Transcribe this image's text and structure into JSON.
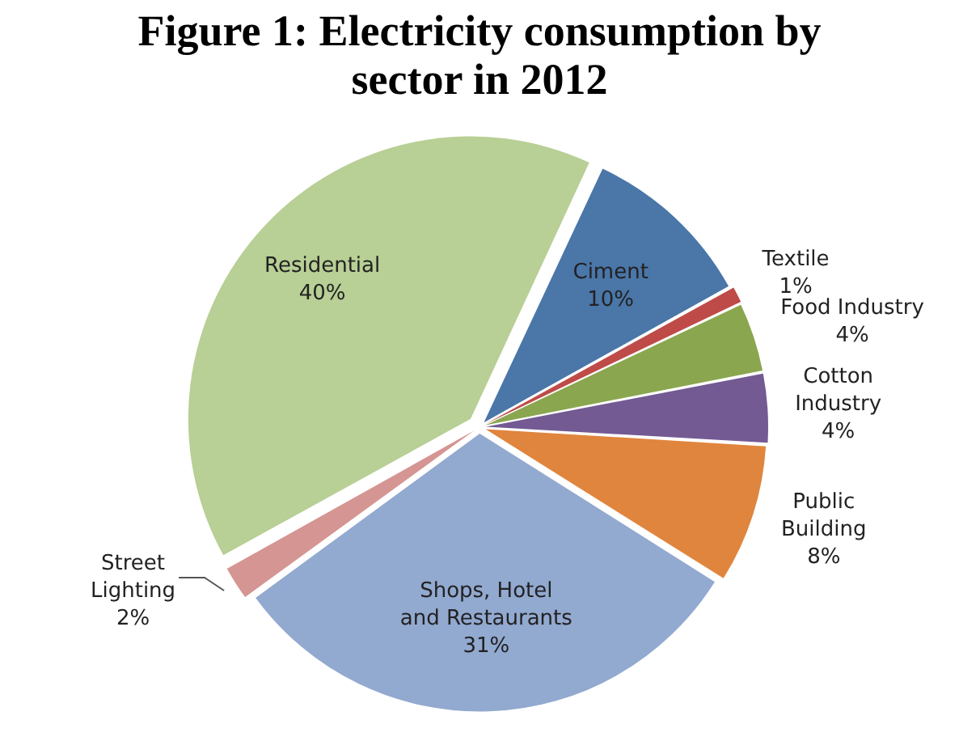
{
  "chart_data": {
    "type": "pie",
    "title": "Figure 1: Electricity consumption by sector in 2012",
    "categories": [
      "Ciment",
      "Textile",
      "Food Industry",
      "Cotton Industry",
      "Public Building",
      "Shops, Hotel and Restaurants",
      "Street Lighting",
      "Residential"
    ],
    "values": [
      10,
      1,
      4,
      4,
      8,
      31,
      2,
      40
    ],
    "value_labels": [
      "10%",
      "1%",
      "4%",
      "4%",
      "8%",
      "31%",
      "2%",
      "40%"
    ],
    "colors": [
      "#4a76a8",
      "#be4b48",
      "#8aa64f",
      "#735a93",
      "#e0853d",
      "#92a9d0",
      "#d59592",
      "#b8cf95"
    ],
    "legend": false
  }
}
